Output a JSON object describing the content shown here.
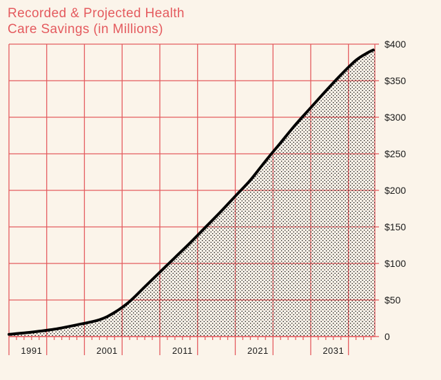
{
  "chart_data": {
    "type": "area",
    "title_lines": [
      "Recorded & Projected Health",
      "Care Savings (in Millions)"
    ],
    "xlabel": "",
    "ylabel": "",
    "x_tick_labels": [
      "1991",
      "2001",
      "2011",
      "2021",
      "2031"
    ],
    "y_tick_labels": [
      "0",
      "$50",
      "$100",
      "$150",
      "$200",
      "$250",
      "$300",
      "$350",
      "$400"
    ],
    "xlim": [
      1988,
      2036.5
    ],
    "ylim": [
      0,
      400
    ],
    "grid": true,
    "series": [
      {
        "x": [
          1988,
          1991,
          1994,
          1997,
          2000,
          2002,
          2004,
          2006,
          2008,
          2010,
          2012,
          2014,
          2016,
          2018,
          2020,
          2022,
          2024,
          2026,
          2028,
          2030,
          2032,
          2034,
          2035.5,
          2036.3
        ],
        "y": [
          3,
          6,
          10,
          16,
          23,
          33,
          48,
          68,
          88,
          108,
          128,
          149,
          170,
          192,
          214,
          240,
          265,
          290,
          313,
          336,
          358,
          378,
          388,
          392
        ]
      }
    ],
    "colors": {
      "background": "#fbf4ea",
      "grid": "#e45a5e",
      "line": "#000000",
      "fill_dots": "#000000",
      "title": "#e45a5e"
    }
  }
}
